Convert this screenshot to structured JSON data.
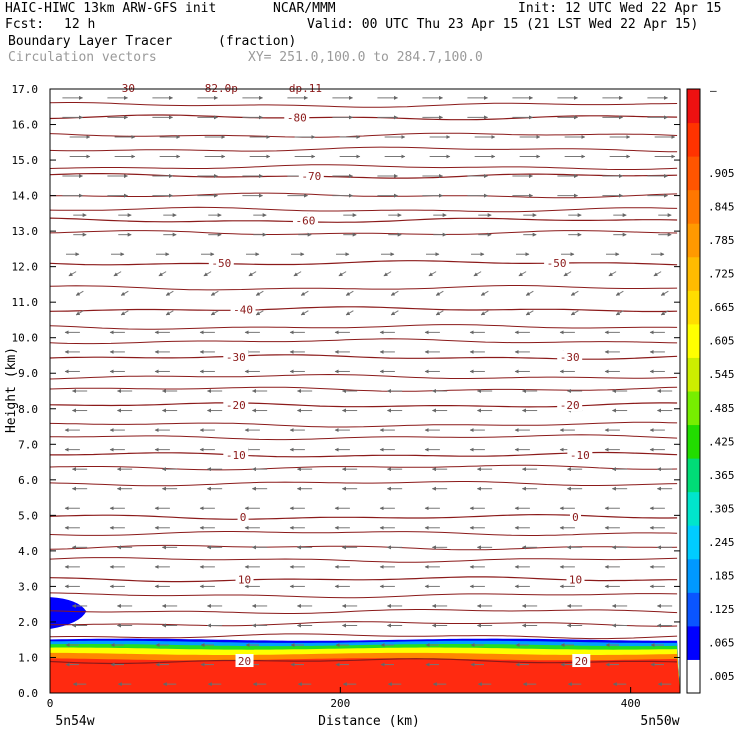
{
  "header": {
    "model": "HAIC-HIWC 13km ARW-GFS init",
    "org": "NCAR/MMM",
    "init": "Init: 12 UTC Wed 22 Apr 15",
    "fcst_label": "Fcst:",
    "fcst_value": "12 h",
    "valid": "Valid: 00 UTC Thu 23 Apr 15 (21 LST Wed 22 Apr 15)",
    "field1": "Boundary Layer Tracer",
    "field1_units": "(fraction)",
    "field2": "Circulation vectors",
    "xsect": "XY= 251.0,100.0 to 284.7,100.0"
  },
  "chart_data": {
    "type": "heatmap",
    "xlabel": "Distance (km)",
    "ylabel": "Height (km)",
    "xlim": [
      0,
      434
    ],
    "ylim": [
      0,
      17
    ],
    "x_ticks": [
      0,
      200,
      400
    ],
    "x_tick_labels": [
      "0",
      "200",
      "400"
    ],
    "y_ticks": [
      0,
      1,
      2,
      3,
      4,
      5,
      6,
      7,
      8,
      9,
      10,
      11,
      12,
      13,
      14,
      15,
      16,
      17
    ],
    "y_tick_labels": [
      "0.0",
      "1.0",
      "2.0",
      "3.0",
      "4.0",
      "5.0",
      "6.0",
      "7.0",
      "8.0",
      "9.0",
      "10.0",
      "11.0",
      "12.0",
      "13.0",
      "14.0",
      "15.0",
      "16.0",
      "17.0"
    ],
    "x_end_labels": [
      "5n54w",
      "5n50w"
    ],
    "colorbar": {
      "labels": [
        ".005",
        ".065",
        ".125",
        ".185",
        ".245",
        ".305",
        ".365",
        ".425",
        ".485",
        ".545",
        ".605",
        ".665",
        ".725",
        ".785",
        ".845",
        ".905"
      ],
      "top_label": "–",
      "colors": [
        "#ffffff",
        "#0000ff",
        "#0a55ff",
        "#0099ff",
        "#00ccff",
        "#00e5cc",
        "#00dd77",
        "#22dd00",
        "#77ee00",
        "#ccee00",
        "#ffff00",
        "#ffdd00",
        "#ffbb00",
        "#ff9900",
        "#ff7700",
        "#ff5500",
        "#ff3300",
        "#ee1111"
      ]
    },
    "tracer_layer": {
      "red_top_km": 0.95,
      "orange_top_km": 1.1,
      "yellow_top_km": 1.25,
      "green_top_km": 1.35,
      "blue_top_km": 1.5,
      "blob_top_km": 2.7,
      "blob_x_km": [
        0,
        25
      ]
    },
    "isotherms": [
      {
        "value": -80,
        "label": "-80",
        "height_km": 16.2,
        "label_x_km": [
          170
        ]
      },
      {
        "value": -70,
        "label": "-70",
        "height_km": 14.55,
        "label_x_km": [
          180
        ]
      },
      {
        "value": -60,
        "label": "-60",
        "height_km": 13.3,
        "label_x_km": [
          176
        ]
      },
      {
        "value": -50,
        "label": "-50",
        "height_km": 12.1,
        "label_x_km": [
          118,
          349
        ]
      },
      {
        "value": -40,
        "label": "-40",
        "height_km": 10.8,
        "label_x_km": [
          133
        ]
      },
      {
        "value": -30,
        "label": "-30",
        "height_km": 9.45,
        "label_x_km": [
          128,
          358
        ]
      },
      {
        "value": -20,
        "label": "-20",
        "height_km": 8.1,
        "label_x_km": [
          128,
          358
        ]
      },
      {
        "value": -10,
        "label": "-10",
        "height_km": 6.7,
        "label_x_km": [
          128,
          365
        ]
      },
      {
        "value": 0,
        "label": "0",
        "height_km": 4.95,
        "label_x_km": [
          133,
          362
        ]
      },
      {
        "value": 10,
        "label": "10",
        "height_km": 3.2,
        "label_x_km": [
          134,
          362
        ]
      },
      {
        "value": 20,
        "label": "20",
        "height_km": 0.9,
        "label_x_km": [
          134,
          366
        ]
      }
    ],
    "extra_contours_km": [
      16.55,
      15.7,
      15.3,
      14.8,
      14.0,
      13.6,
      12.95,
      11.4,
      10.3,
      9.9,
      8.9,
      8.55,
      7.55,
      7.2,
      6.35,
      5.9,
      4.5,
      4.1,
      3.75,
      2.75,
      2.3,
      1.95,
      1.6
    ],
    "top_clipped_labels": [
      "30",
      "82.0p",
      "dp.11"
    ],
    "wind_vectors": [
      {
        "z_from": 13.5,
        "z_to": 17,
        "direction": "east",
        "strength": 0.9
      },
      {
        "z_from": 12.3,
        "z_to": 13.5,
        "direction": "east",
        "strength": 0.5
      },
      {
        "z_from": 10.5,
        "z_to": 12.3,
        "direction": "southwest",
        "strength": 0.25
      },
      {
        "z_from": 1.5,
        "z_to": 10.5,
        "direction": "west",
        "strength": 0.6
      },
      {
        "z_from": 0,
        "z_to": 1.5,
        "direction": "west",
        "strength": 0.5
      }
    ],
    "grid": false,
    "legend": "right-colorbar"
  }
}
